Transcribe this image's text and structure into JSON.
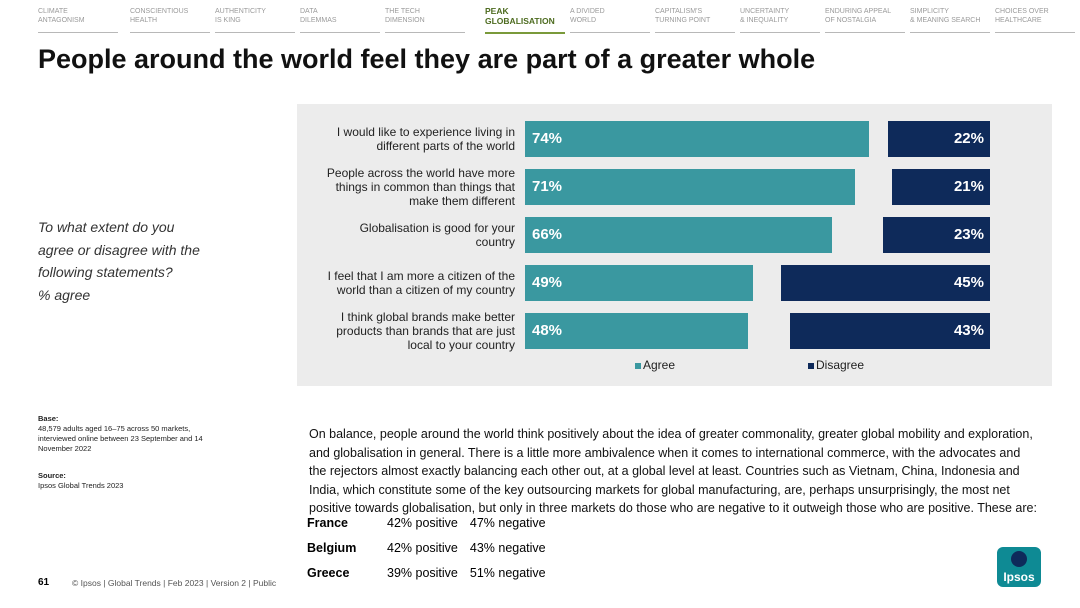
{
  "nav": [
    {
      "lines": [
        "CLIMATE",
        "ANTAGONISM"
      ]
    },
    {
      "lines": [
        "CONSCIENTIOUS",
        "HEALTH"
      ]
    },
    {
      "lines": [
        "AUTHENTICITY",
        "IS KING"
      ]
    },
    {
      "lines": [
        "DATA",
        "DILEMMAS"
      ]
    },
    {
      "lines": [
        "THE TECH",
        "DIMENSION"
      ]
    },
    {
      "lines": [
        "PEAK",
        "GLOBALISATION"
      ],
      "active": true
    },
    {
      "lines": [
        "A DIVIDED",
        "WORLD"
      ]
    },
    {
      "lines": [
        "CAPITALISM'S",
        "TURNING POINT"
      ]
    },
    {
      "lines": [
        "UNCERTAINTY",
        "& INEQUALITY"
      ]
    },
    {
      "lines": [
        "ENDURING APPEAL",
        "OF NOSTALGIA"
      ]
    },
    {
      "lines": [
        "SIMPLICITY",
        "& MEANING SEARCH"
      ]
    },
    {
      "lines": [
        "CHOICES OVER",
        "HEALTHCARE"
      ]
    }
  ],
  "title": "People around the world feel they are part of a greater whole",
  "question": [
    "To what extent do you",
    "agree or disagree with the",
    "following statements?",
    "% agree"
  ],
  "base": {
    "label": "Base:",
    "text": "48,579 adults aged 16–75 across 50 markets, interviewed online between 23 September and 14 November 2022"
  },
  "source": {
    "label": "Source:",
    "text": "Ipsos Global Trends 2023"
  },
  "chart_data": {
    "type": "bar",
    "orientation": "horizontal",
    "legend": "bottom",
    "categories": [
      "I would like to experience living in different parts of the world",
      "People across the world have more things in common than things that make them different",
      "Globalisation is good for your country",
      "I feel that I am more a citizen of the world than a citizen of my country",
      "I think global brands make better products than brands that are just local to your country"
    ],
    "series": [
      {
        "name": "Agree",
        "color": "#3a98a0",
        "values": [
          74,
          71,
          66,
          49,
          48
        ],
        "value_labels": [
          "74%",
          "71%",
          "66%",
          "49%",
          "48%"
        ]
      },
      {
        "name": "Disagree",
        "color": "#0e2a5a",
        "values": [
          22,
          21,
          23,
          45,
          43
        ],
        "value_labels": [
          "22%",
          "21%",
          "23%",
          "45%",
          "43%"
        ]
      }
    ]
  },
  "body": "On balance, people around the world think positively about the idea of greater commonality, greater global mobility and exploration, and globalisation in general. There is a little more ambivalence when it comes to international commerce, with the advocates and the rejectors almost exactly balancing each other out, at a global level at least. Countries such as Vietnam, China, Indonesia and India, which constitute some of the key outsourcing markets for global manufacturing, are, perhaps unsurprisingly, the most net positive towards globalisation, but only in three markets do those who are negative to it outweigh those who are positive. These are:",
  "countries": [
    [
      "France",
      "42% positive",
      "47% negative"
    ],
    [
      "Belgium",
      "42% positive",
      "43% negative"
    ],
    [
      "Greece",
      "39% positive",
      "51% negative"
    ]
  ],
  "footer": {
    "page": "61",
    "text": "© Ipsos | Global Trends | Feb 2023 | Version 2 | Public"
  },
  "logo": "Ipsos"
}
